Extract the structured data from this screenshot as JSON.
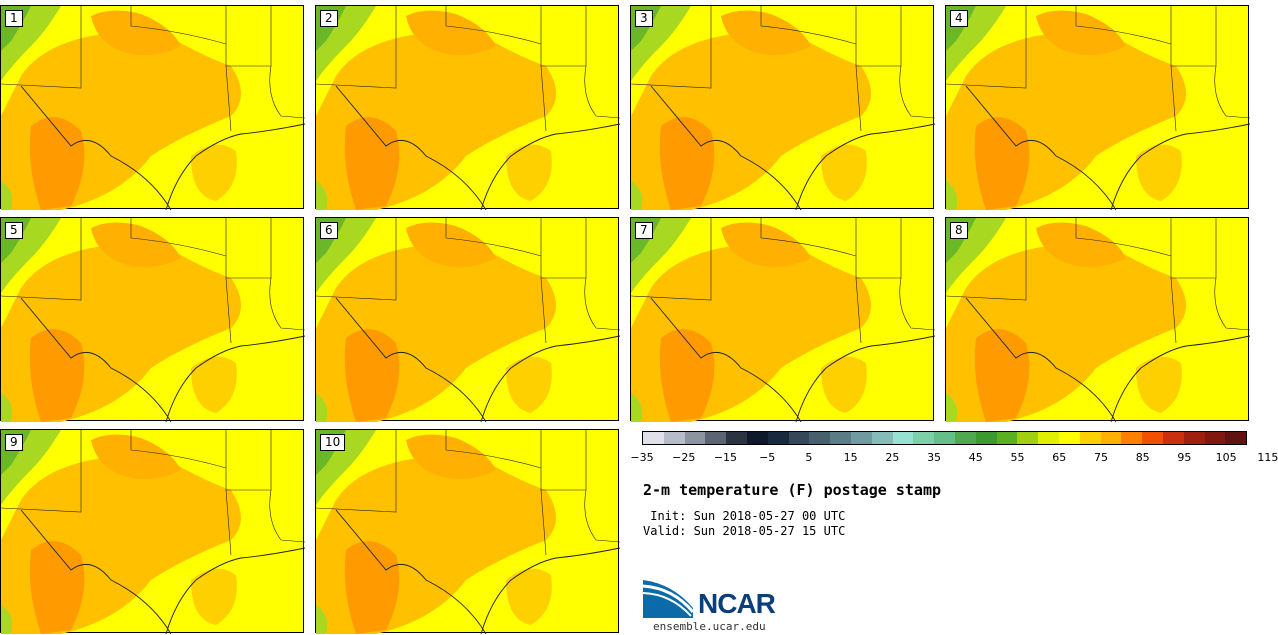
{
  "panels": [
    "1",
    "2",
    "3",
    "4",
    "5",
    "6",
    "7",
    "8",
    "9",
    "10"
  ],
  "colorbar": {
    "colors": [
      "#e0e0ea",
      "#b8bcc8",
      "#8c94a2",
      "#5c6474",
      "#2c3444",
      "#0e1a2c",
      "#1a2a3e",
      "#34485a",
      "#46606c",
      "#5a7c86",
      "#6e9aa0",
      "#86bcb8",
      "#98e0d0",
      "#7ed0a8",
      "#64c088",
      "#50a850",
      "#3c9830",
      "#5ab020",
      "#a0d010",
      "#e0f000",
      "#ffff00",
      "#ffd000",
      "#ffb000",
      "#ff8000",
      "#f05000",
      "#c83010",
      "#a02010",
      "#801810",
      "#601410"
    ],
    "tick_labels": [
      "−35",
      "−25",
      "−15",
      "−5",
      "5",
      "15",
      "25",
      "35",
      "45",
      "55",
      "65",
      "75",
      "85",
      "95",
      "105",
      "115"
    ]
  },
  "title": "2-m temperature (F) postage stamp",
  "init_line": " Init: Sun 2018-05-27 00 UTC",
  "valid_line": "Valid: Sun 2018-05-27 15 UTC",
  "logo": {
    "text": "NCAR",
    "url": "ensemble.ucar.edu"
  }
}
